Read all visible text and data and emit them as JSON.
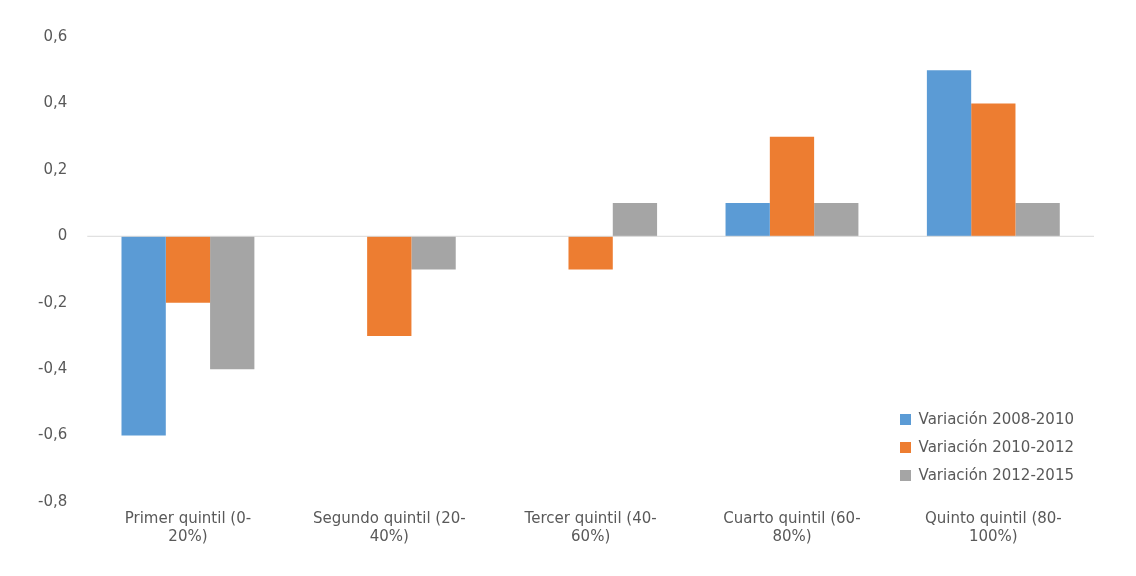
{
  "chart_data": {
    "type": "bar",
    "categories": [
      "Primer quintil (0-20%)",
      "Segundo quintil (20-40%)",
      "Tercer quintil (40-60%)",
      "Cuarto quintil (60-80%)",
      "Quinto quintil (80-100%)"
    ],
    "series": [
      {
        "name": "Variación 2008-2010",
        "color": "#5b9bd5",
        "values": [
          -0.6,
          0,
          0,
          0.1,
          0.5
        ]
      },
      {
        "name": "Variación 2010-2012",
        "color": "#ed7d31",
        "values": [
          -0.2,
          -0.3,
          -0.1,
          0.3,
          0.4
        ]
      },
      {
        "name": "Variación 2012-2015",
        "color": "#a5a5a5",
        "values": [
          -0.4,
          -0.1,
          0.1,
          0.1,
          0.1
        ]
      }
    ],
    "ylim": [
      -0.8,
      0.6
    ],
    "yticks": [
      {
        "value": -0.8,
        "label": "-0,8"
      },
      {
        "value": -0.6,
        "label": "-0,6"
      },
      {
        "value": -0.4,
        "label": "-0,4"
      },
      {
        "value": -0.2,
        "label": "-0,2"
      },
      0,
      {
        "value": 0.2,
        "label": "0,2"
      },
      {
        "value": 0.4,
        "label": "0,4"
      },
      {
        "value": 0.6,
        "label": "0,6"
      }
    ],
    "grid": false,
    "ref_lines": [
      {
        "axis": "y",
        "value": 0,
        "color": "#d9d9d9"
      }
    ],
    "legend": "bottom right"
  }
}
